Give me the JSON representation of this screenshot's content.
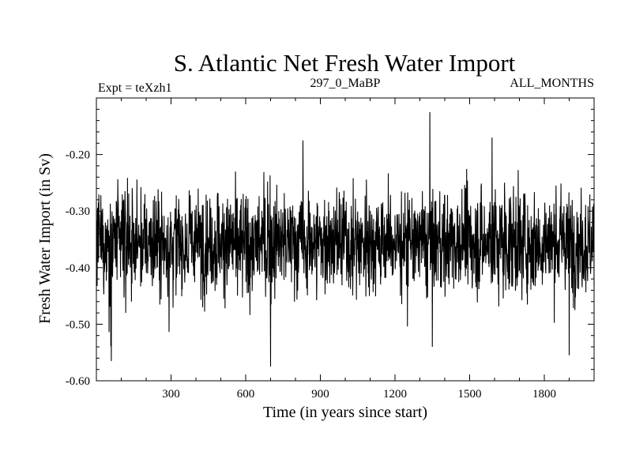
{
  "chart_data": {
    "type": "line",
    "title": "S. Atlantic Net Fresh Water Import",
    "subtitle_left": "Expt = teXzh1",
    "subtitle_center": "297_0_MaBP",
    "subtitle_right": "ALL_MONTHS",
    "xlabel": "Time (in years since start)",
    "ylabel": "Fresh Water Import (in Sv)",
    "xlim": [
      0,
      2000
    ],
    "ylim": [
      -0.6,
      -0.1
    ],
    "xticks": [
      300,
      600,
      900,
      1200,
      1500,
      1800
    ],
    "xtick_labels": [
      "300",
      "600",
      "900",
      "1200",
      "1500",
      "1800"
    ],
    "yticks": [
      -0.6,
      -0.5,
      -0.4,
      -0.3,
      -0.2
    ],
    "ytick_labels": [
      "-0.60",
      "-0.50",
      "-0.40",
      "-0.30",
      "-0.20"
    ],
    "series": [
      {
        "name": "Fresh Water Import",
        "color": "#000000",
        "x_start": 1,
        "x_step": 1,
        "n_points": 2000,
        "mean": -0.355,
        "std": 0.045,
        "notable_points": [
          {
            "x": 60,
            "y": -0.565
          },
          {
            "x": 700,
            "y": -0.575
          },
          {
            "x": 830,
            "y": -0.175
          },
          {
            "x": 1340,
            "y": -0.125
          },
          {
            "x": 1350,
            "y": -0.54
          },
          {
            "x": 1380,
            "y": -0.265
          },
          {
            "x": 1590,
            "y": -0.17
          },
          {
            "x": 1900,
            "y": -0.555
          }
        ]
      }
    ]
  }
}
